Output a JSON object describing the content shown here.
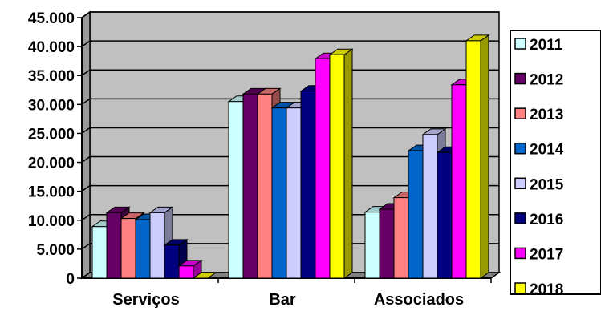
{
  "chart_data": {
    "type": "bar",
    "style": "3d-clustered-column",
    "categories": [
      "Serviços",
      "Bar",
      "Associados"
    ],
    "ylim": [
      0,
      45000
    ],
    "yticks": [
      0,
      5000,
      10000,
      15000,
      20000,
      25000,
      30000,
      35000,
      40000,
      45000
    ],
    "ytick_labels": [
      "0",
      "5.000",
      "10.000",
      "15.000",
      "20.000",
      "25.000",
      "30.000",
      "35.000",
      "40.000",
      "45.000"
    ],
    "grid": true,
    "legend_position": "right",
    "series": [
      {
        "name": "2011",
        "color": "#ccffff",
        "values": [
          8900,
          30500,
          11400
        ]
      },
      {
        "name": "2012",
        "color": "#660066",
        "values": [
          11300,
          31800,
          11900
        ]
      },
      {
        "name": "2013",
        "color": "#ff8080",
        "values": [
          10300,
          31800,
          13900
        ]
      },
      {
        "name": "2014",
        "color": "#0066cc",
        "values": [
          10100,
          29400,
          22000
        ]
      },
      {
        "name": "2015",
        "color": "#ccccff",
        "values": [
          11300,
          29400,
          24800
        ]
      },
      {
        "name": "2016",
        "color": "#000080",
        "values": [
          5700,
          32300,
          21700
        ]
      },
      {
        "name": "2017",
        "color": "#ff00ff",
        "values": [
          2100,
          37900,
          33400
        ]
      },
      {
        "name": "2018",
        "color": "#ffff00",
        "values": [
          0,
          38600,
          41000
        ]
      }
    ]
  }
}
